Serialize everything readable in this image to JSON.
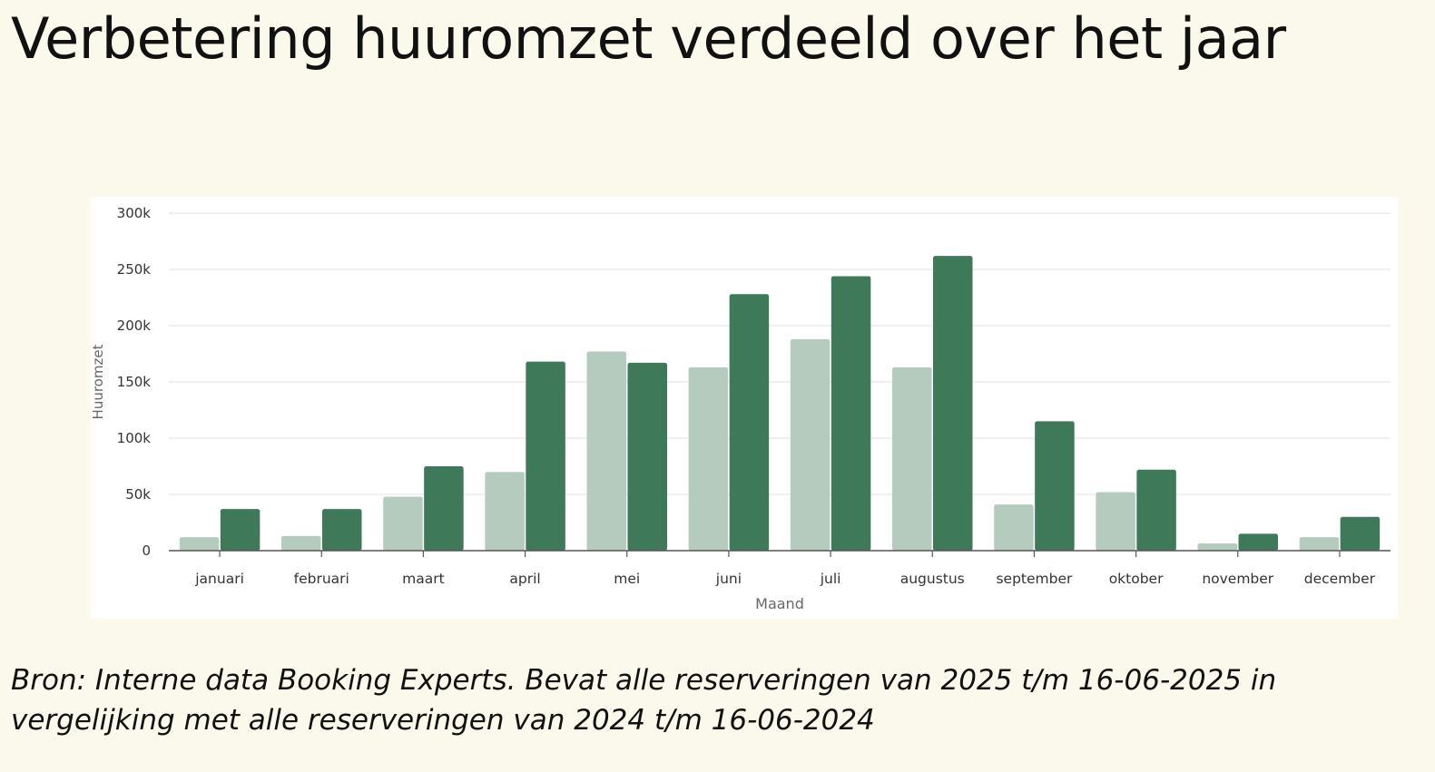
{
  "slide": {
    "background": "#fbf9ec",
    "title": "Verbetering huuromzet verdeeld over het jaar",
    "source": "Bron: Interne data Booking Experts. Bevat alle reserveringen van 2025 t/m 16-06-2025 in vergelijking met alle reserveringen van 2024 t/m 16-06-2024"
  },
  "chart_data": {
    "type": "bar",
    "title": "",
    "xlabel": "Maand",
    "ylabel": "Huuromzet",
    "ylim": [
      0,
      300000
    ],
    "yticks": [
      0,
      50000,
      100000,
      150000,
      200000,
      250000,
      300000
    ],
    "ytick_labels": [
      "0",
      "50k",
      "100k",
      "150k",
      "200k",
      "250k",
      "300k"
    ],
    "grid": true,
    "legend": "none",
    "categories": [
      "januari",
      "februari",
      "maart",
      "april",
      "mei",
      "juni",
      "juli",
      "augustus",
      "september",
      "oktober",
      "november",
      "december"
    ],
    "series": [
      {
        "color": "#b5cbbe",
        "values": [
          12000,
          13000,
          48000,
          70000,
          177000,
          163000,
          188000,
          163000,
          41000,
          52000,
          6500,
          12000
        ]
      },
      {
        "color": "#3e7a5a",
        "values": [
          37000,
          37000,
          75000,
          168000,
          167000,
          228000,
          244000,
          262000,
          115000,
          72000,
          15000,
          30000
        ]
      }
    ],
    "colors": {
      "grid": "#e8e8e8",
      "axis": "#555555",
      "tick_text": "#333333",
      "axis_label": "#666666"
    }
  }
}
